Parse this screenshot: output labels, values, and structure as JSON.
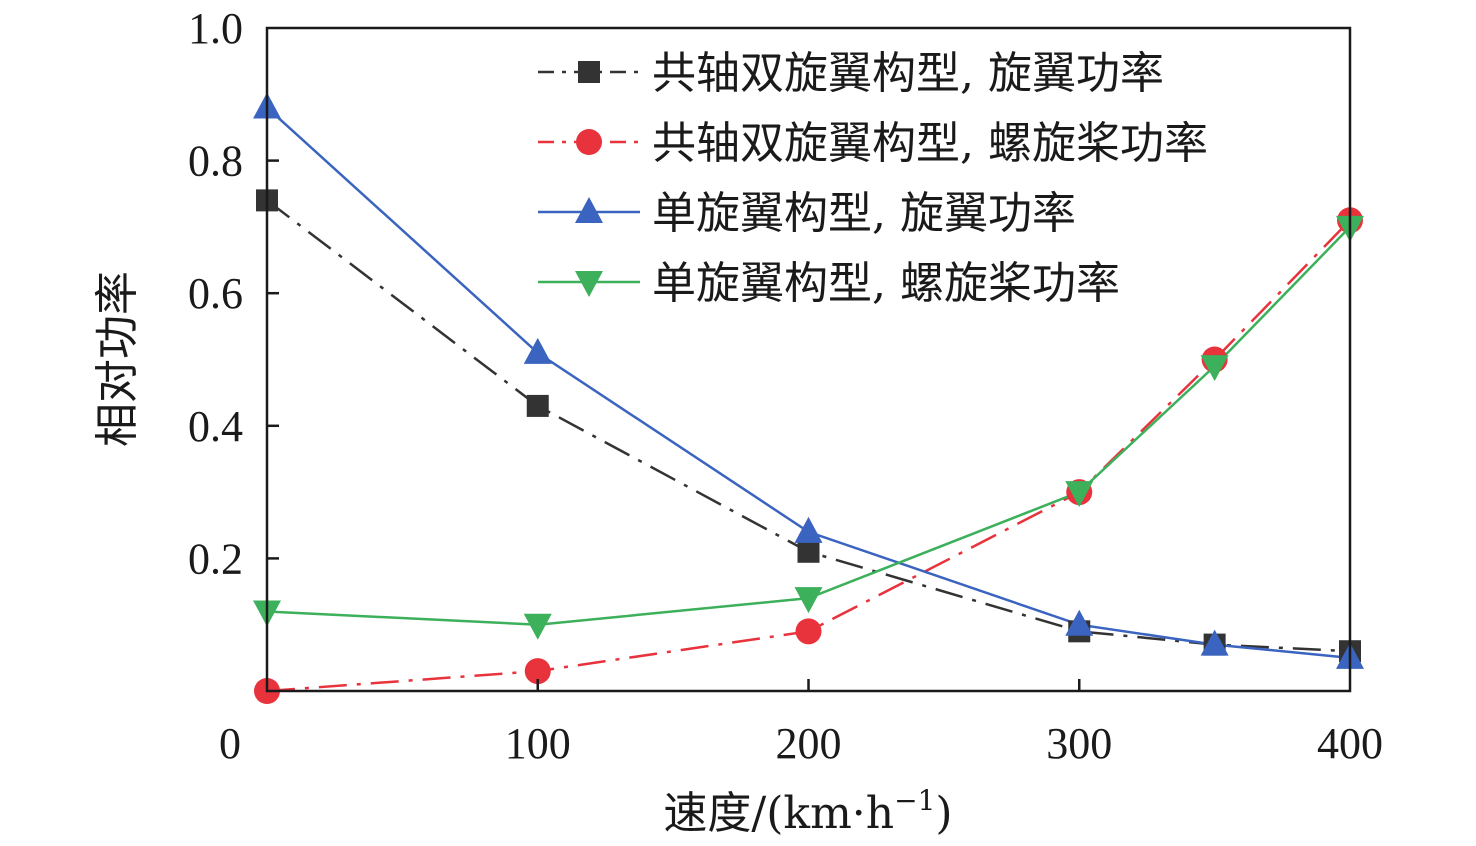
{
  "chart_data": {
    "type": "line",
    "title": "",
    "xlabel": "速度/(km·h",
    "xlabel_sup": "−1",
    "xlabel_close": ")",
    "ylabel": "相对功率",
    "xlim": [
      0,
      400
    ],
    "ylim": [
      0,
      1.0
    ],
    "x_ticks": [
      0,
      100,
      200,
      300,
      400
    ],
    "x_tick_labels": [
      "0",
      "100",
      "200",
      "300",
      "400"
    ],
    "y_ticks": [
      0.2,
      0.4,
      0.6,
      0.8,
      1.0
    ],
    "y_tick_labels": [
      "0.2",
      "0.4",
      "0.6",
      "0.8",
      "1.0"
    ],
    "grid": false,
    "legend_position": "top-right",
    "x": [
      0,
      100,
      200,
      300,
      350,
      400
    ],
    "series": [
      {
        "name": "共轴双旋翼构型, 旋翼功率",
        "values": [
          0.74,
          0.43,
          0.21,
          0.09,
          0.07,
          0.06
        ],
        "color": "#333333",
        "marker": "square",
        "line_style": "dashdot"
      },
      {
        "name": "共轴双旋翼构型, 螺旋桨功率",
        "values": [
          0.0,
          0.03,
          0.09,
          0.3,
          0.5,
          0.71
        ],
        "color": "#e8323c",
        "marker": "circle",
        "line_style": "dashdot"
      },
      {
        "name": "单旋翼构型, 旋翼功率",
        "values": [
          0.88,
          0.51,
          0.24,
          0.1,
          0.07,
          0.05
        ],
        "color": "#3a64bf",
        "marker": "triangle-up",
        "line_style": "solid"
      },
      {
        "name": "单旋翼构型, 螺旋桨功率",
        "values": [
          0.12,
          0.1,
          0.14,
          0.3,
          0.49,
          0.7
        ],
        "color": "#3cb05a",
        "marker": "triangle-down",
        "line_style": "solid"
      }
    ]
  }
}
